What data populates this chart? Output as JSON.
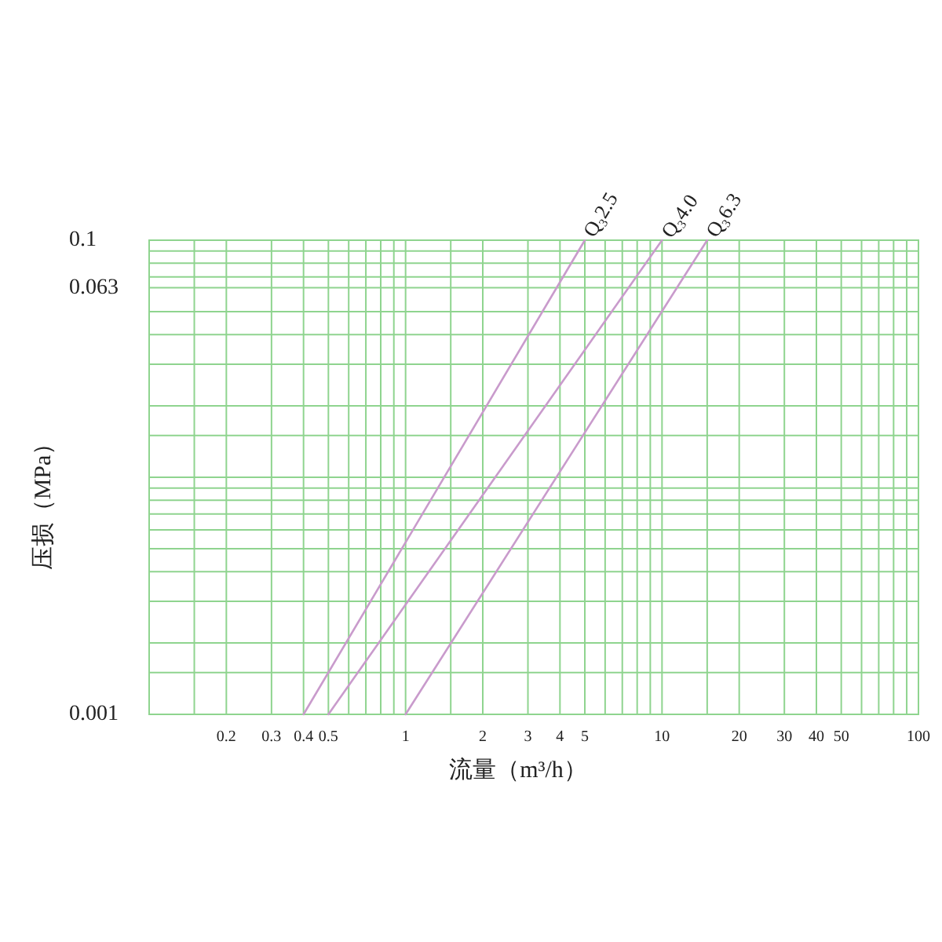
{
  "chart_data": {
    "type": "line",
    "xlabel": "流量（m³/h）",
    "ylabel": "压损（MPa）",
    "log": "xy",
    "grid": true,
    "xlim": [
      0.1,
      100
    ],
    "ylim": [
      0.001,
      0.1
    ],
    "xticks": [
      {
        "value": 0.15,
        "label": null
      },
      0.2,
      0.3,
      0.4,
      0.5,
      {
        "value": 0.6,
        "label": null
      },
      {
        "value": 0.7,
        "label": null
      },
      {
        "value": 0.8,
        "label": null
      },
      {
        "value": 0.9,
        "label": null
      },
      1,
      {
        "value": 1.5,
        "label": null
      },
      2,
      3,
      4,
      5,
      {
        "value": 6,
        "label": null
      },
      {
        "value": 7,
        "label": null
      },
      {
        "value": 8,
        "label": null
      },
      {
        "value": 9,
        "label": null
      },
      10,
      {
        "value": 15,
        "label": null
      },
      20,
      30,
      40,
      50,
      {
        "value": 60,
        "label": null
      },
      {
        "value": 70,
        "label": null
      },
      {
        "value": 80,
        "label": null
      },
      {
        "value": 90,
        "label": null
      },
      100
    ],
    "yticks": [
      0.001,
      {
        "value": 0.0015,
        "label": null
      },
      {
        "value": 0.002,
        "label": null
      },
      {
        "value": 0.003,
        "label": null
      },
      {
        "value": 0.004,
        "label": null
      },
      {
        "value": 0.005,
        "label": null
      },
      {
        "value": 0.006,
        "label": null
      },
      {
        "value": 0.007,
        "label": null
      },
      {
        "value": 0.008,
        "label": null
      },
      {
        "value": 0.009,
        "label": null
      },
      {
        "value": 0.01,
        "label": null
      },
      {
        "value": 0.015,
        "label": null
      },
      {
        "value": 0.02,
        "label": null
      },
      {
        "value": 0.03,
        "label": null
      },
      {
        "value": 0.04,
        "label": null
      },
      {
        "value": 0.05,
        "label": null
      },
      0.063,
      {
        "value": 0.07,
        "label": null
      },
      {
        "value": 0.08,
        "label": null
      },
      {
        "value": 0.09,
        "label": null
      },
      0.1
    ],
    "series": [
      {
        "name": "Q₃2.5",
        "color": "#c99bcc",
        "x": [
          0.4,
          5
        ],
        "values": [
          0.001,
          0.1
        ]
      },
      {
        "name": "Q₃4.0",
        "color": "#c99bcc",
        "x": [
          0.5,
          10
        ],
        "values": [
          0.001,
          0.1
        ]
      },
      {
        "name": "Q₃6.3",
        "color": "#c99bcc",
        "x": [
          1,
          15
        ],
        "values": [
          0.001,
          0.1
        ]
      }
    ]
  }
}
